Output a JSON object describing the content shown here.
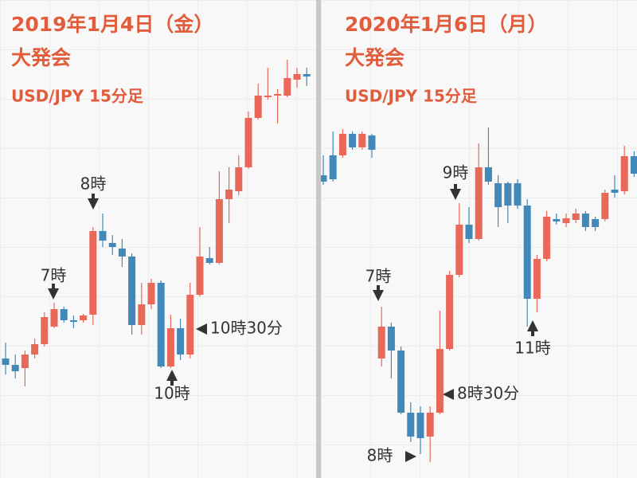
{
  "chart_data": [
    {
      "type": "candlestick",
      "title": "2019年1月4日（金）",
      "subtitle": "大発会",
      "pair_label": "USD/JPY 15分足",
      "up_color": "#e8685a",
      "down_color": "#4289b9",
      "ylim": [
        0,
        600
      ],
      "categories": [
        null,
        null,
        null,
        null,
        null,
        null,
        null,
        null,
        null,
        null,
        null,
        null,
        null,
        null,
        null,
        null,
        null,
        null,
        null,
        null,
        null,
        null,
        null,
        null,
        null,
        null,
        null,
        null,
        null,
        null,
        null,
        null
      ],
      "open": [
        150,
        142,
        138,
        155,
        168,
        190,
        212,
        198,
        198,
        205,
        310,
        295,
        288,
        278,
        192,
        218,
        245,
        140,
        188,
        155,
        230,
        276,
        270,
        350,
        360,
        390,
        452,
        478,
        480,
        480,
        500,
        507
      ],
      "high": [
        170,
        155,
        160,
        175,
        208,
        220,
        215,
        204,
        206,
        315,
        332,
        305,
        300,
        282,
        245,
        250,
        248,
        205,
        200,
        245,
        315,
        290,
        385,
        390,
        405,
        460,
        495,
        515,
        488,
        525,
        515,
        515
      ],
      "low": [
        130,
        125,
        115,
        150,
        165,
        188,
        195,
        188,
        195,
        192,
        290,
        280,
        265,
        180,
        180,
        212,
        138,
        138,
        148,
        150,
        228,
        268,
        268,
        320,
        355,
        388,
        450,
        475,
        445,
        478,
        490,
        492
      ],
      "close": [
        142,
        134,
        155,
        168,
        202,
        212,
        198,
        196,
        204,
        310,
        298,
        290,
        278,
        192,
        218,
        245,
        140,
        188,
        155,
        230,
        278,
        270,
        350,
        362,
        390,
        452,
        480,
        480,
        482,
        502,
        507,
        504
      ],
      "annotations": [
        "7時",
        "8時",
        "10時",
        "10時30分"
      ]
    },
    {
      "type": "candlestick",
      "title": "2020年1月6日（月）",
      "subtitle": "大発会",
      "pair_label": "USD/JPY 15分足",
      "up_color": "#e8685a",
      "down_color": "#4289b9",
      "ylim": [
        0,
        600
      ],
      "categories": [
        null,
        null,
        null,
        null,
        null,
        null,
        null,
        null,
        null,
        null,
        null,
        null,
        null,
        null,
        null,
        null,
        null,
        null,
        null,
        null,
        null,
        null,
        null,
        null,
        null,
        null,
        null,
        null,
        null,
        null,
        null,
        null,
        null
      ],
      "open": [
        380,
        405,
        405,
        432,
        415,
        430,
        150,
        190,
        160,
        82,
        82,
        52,
        82,
        162,
        255,
        318,
        300,
        390,
        370,
        370,
        370,
        342,
        225,
        275,
        325,
        320,
        324,
        332,
        325,
        325,
        362,
        360,
        404
      ],
      "high": [
        405,
        435,
        438,
        435,
        435,
        432,
        215,
        195,
        165,
        95,
        90,
        90,
        210,
        260,
        345,
        340,
        420,
        440,
        380,
        372,
        375,
        350,
        280,
        335,
        332,
        332,
        338,
        335,
        328,
        362,
        380,
        417,
        410
      ],
      "low": [
        368,
        372,
        402,
        412,
        412,
        402,
        140,
        125,
        80,
        45,
        30,
        20,
        80,
        160,
        252,
        295,
        298,
        368,
        315,
        320,
        338,
        190,
        208,
        272,
        318,
        315,
        320,
        310,
        310,
        322,
        352,
        356,
        378
      ],
      "close": [
        372,
        375,
        432,
        415,
        432,
        412,
        190,
        160,
        82,
        52,
        50,
        82,
        162,
        255,
        318,
        300,
        390,
        372,
        340,
        342,
        342,
        225,
        275,
        328,
        322,
        326,
        332,
        315,
        315,
        358,
        358,
        404,
        382
      ],
      "annotations": [
        "7時",
        "8時",
        "8時30分",
        "9時",
        "11時"
      ]
    }
  ]
}
